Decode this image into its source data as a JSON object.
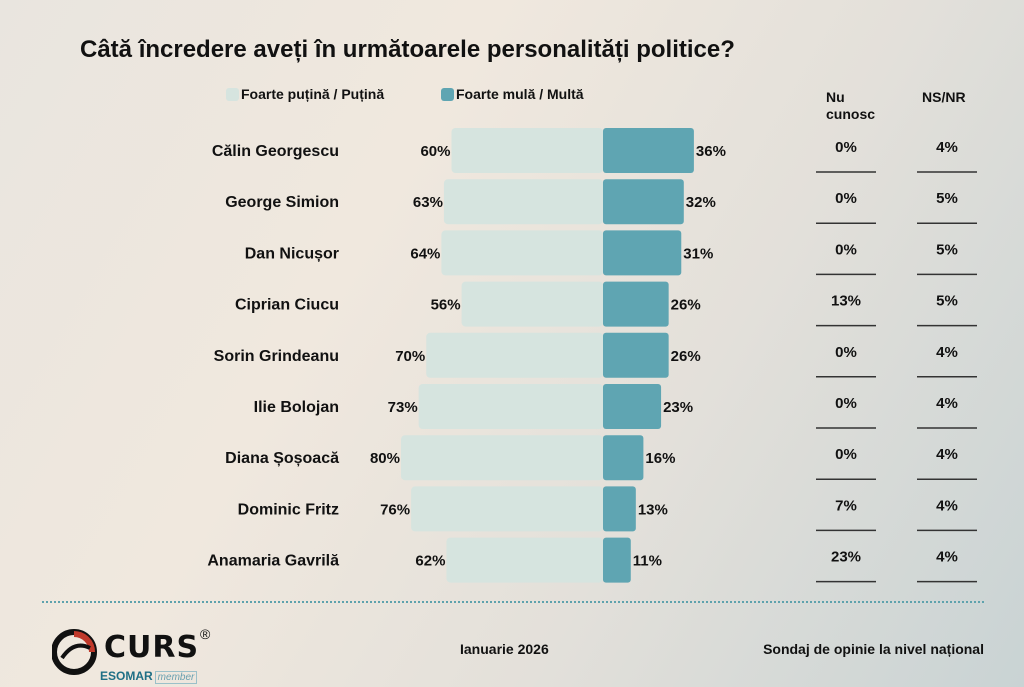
{
  "title": "Câtă încredere aveți în următoarele personalități politice?",
  "colors": {
    "low": "#d6e4df",
    "high": "#5fa5b2",
    "rule": "#333333",
    "accent": "#5ea2ad"
  },
  "columns": {
    "nu_cunosc": "Nu cunosc",
    "ns_nr": "NS/NR"
  },
  "footer": {
    "brand": "CURS",
    "registered": "®",
    "esomar": "ESOMAR",
    "member": "member",
    "date": "Ianuarie 2026",
    "source": "Sondaj de opinie la nivel național"
  },
  "chart_data": {
    "type": "bar",
    "title": "Câtă încredere aveți în următoarele personalități politice?",
    "stacked": "diverging",
    "categories": [
      "Călin Georgescu",
      "George Simion",
      "Dan Nicușor",
      "Ciprian Ciucu",
      "Sorin Grindeanu",
      "Ilie Bolojan",
      "Diana Șoșoacă",
      "Dominic Fritz",
      "Anamaria Gavrilă"
    ],
    "series": [
      {
        "name": "Foarte puțină / Puțină",
        "values": [
          60,
          63,
          64,
          56,
          70,
          73,
          80,
          76,
          62
        ]
      },
      {
        "name": "Foarte mulă / Multă",
        "values": [
          36,
          32,
          31,
          26,
          26,
          23,
          16,
          13,
          11
        ]
      }
    ],
    "nu_cunosc": [
      0,
      0,
      0,
      13,
      0,
      0,
      0,
      7,
      23
    ],
    "ns_nr": [
      4,
      5,
      5,
      5,
      4,
      4,
      4,
      4,
      4
    ],
    "unit": "%",
    "legend": "top"
  }
}
